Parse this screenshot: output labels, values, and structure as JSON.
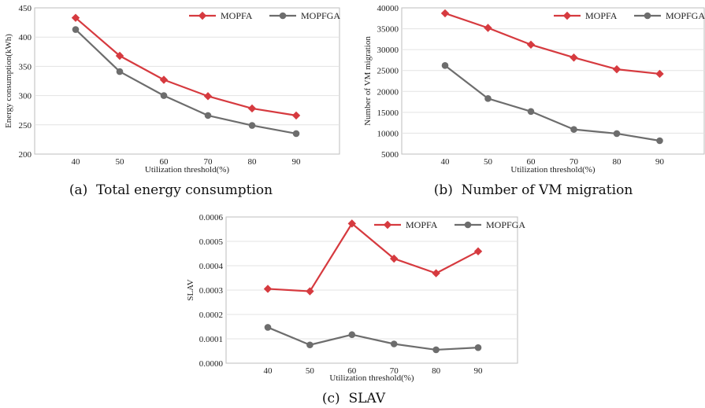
{
  "colors": {
    "mopfa": "#d63a3f",
    "mopfga": "#6d6d6d",
    "grid": "#e3e3e3",
    "frame": "#bdbdbd"
  },
  "chart_data": [
    {
      "id": "a",
      "type": "line",
      "caption": "(a)  Total energy consumption",
      "xlabel": "Utilization threshold(%)",
      "ylabel": "Energy consumption(kWh)",
      "categories": [
        "40",
        "50",
        "60",
        "70",
        "80",
        "90"
      ],
      "ylim": [
        200,
        450
      ],
      "yticks": [
        "200",
        "250",
        "300",
        "350",
        "400",
        "450"
      ],
      "ytick_values": [
        200,
        250,
        300,
        350,
        400,
        450
      ],
      "grid": true,
      "legend": "top-right",
      "series": [
        {
          "name": "MOPFA",
          "marker": "diamond",
          "values": [
            433,
            368,
            327,
            299,
            278,
            266
          ]
        },
        {
          "name": "MOPFGA",
          "marker": "circle",
          "values": [
            413,
            341,
            300,
            266,
            249,
            235
          ]
        }
      ]
    },
    {
      "id": "b",
      "type": "line",
      "caption": "(b)  Number of VM migration",
      "xlabel": "Utilization threshold(%)",
      "ylabel": "Number of VM migration",
      "categories": [
        "40",
        "50",
        "60",
        "70",
        "80",
        "90"
      ],
      "ylim": [
        5000,
        40000
      ],
      "yticks": [
        "5000",
        "10000",
        "15000",
        "20000",
        "25000",
        "30000",
        "35000",
        "40000"
      ],
      "ytick_values": [
        5000,
        10000,
        15000,
        20000,
        25000,
        30000,
        35000,
        40000
      ],
      "grid": true,
      "legend": "top-right",
      "series": [
        {
          "name": "MOPFA",
          "marker": "diamond",
          "values": [
            38700,
            35200,
            31200,
            28100,
            25300,
            24200
          ]
        },
        {
          "name": "MOPFGA",
          "marker": "circle",
          "values": [
            26200,
            18300,
            15200,
            10900,
            9900,
            8200
          ]
        }
      ]
    },
    {
      "id": "c",
      "type": "line",
      "caption": "(c)  SLAV",
      "xlabel": "Utilization threshold(%)",
      "ylabel": "SLAV",
      "categories": [
        "40",
        "50",
        "60",
        "70",
        "80",
        "90"
      ],
      "ylim": [
        0,
        0.0006
      ],
      "yticks": [
        "0.0000",
        "0.0001",
        "0.0002",
        "0.0003",
        "0.0004",
        "0.0005",
        "0.0006"
      ],
      "ytick_values": [
        0,
        0.0001,
        0.0002,
        0.0003,
        0.0004,
        0.0005,
        0.0006
      ],
      "grid": true,
      "legend": "top-right",
      "series": [
        {
          "name": "MOPFA",
          "marker": "diamond",
          "values": [
            0.000305,
            0.000295,
            0.000573,
            0.000429,
            0.000369,
            0.000459
          ]
        },
        {
          "name": "MOPFGA",
          "marker": "circle",
          "values": [
            0.000147,
            7.5e-05,
            0.000117,
            7.9e-05,
            5.5e-05,
            6.4e-05
          ]
        }
      ]
    }
  ]
}
